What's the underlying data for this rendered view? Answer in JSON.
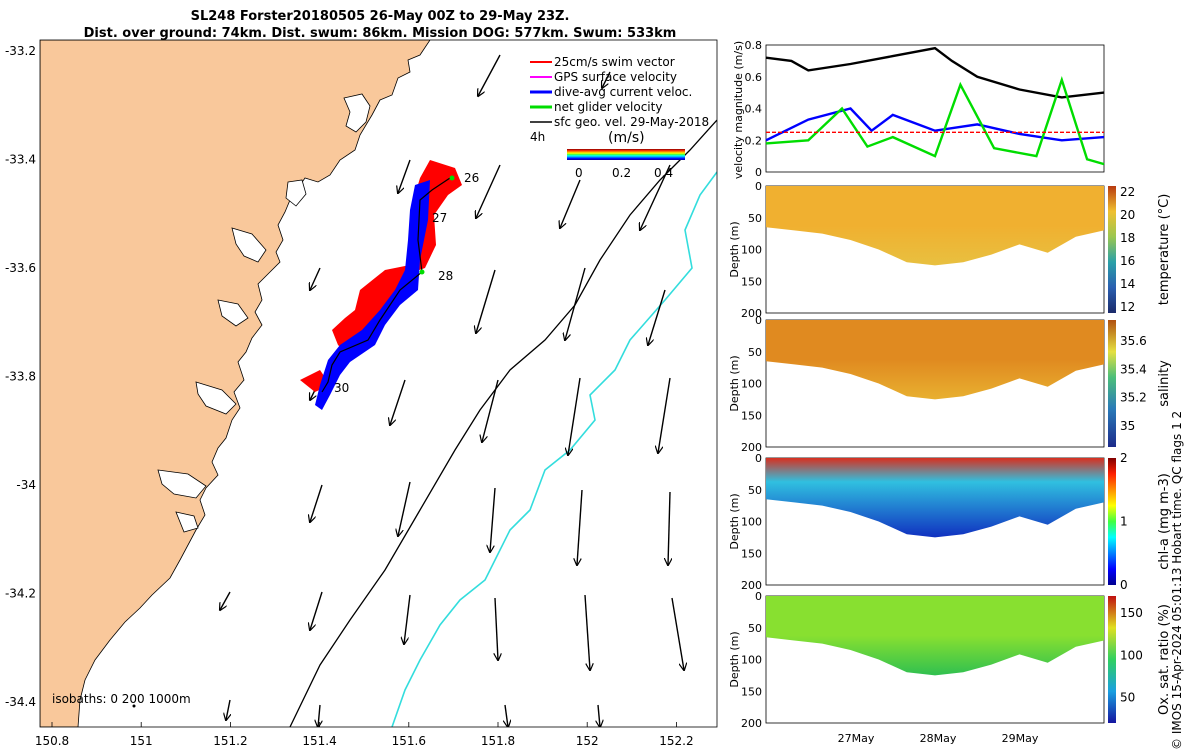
{
  "title": {
    "line1": "SL248 Forster20180505 26-May 00Z to 29-May 23Z.",
    "line2": "Dist. over ground: 74km. Dist. swum: 86km. Mission DOG: 577km. Swum: 533km"
  },
  "map": {
    "lon_ticks": [
      "150.8",
      "151",
      "151.2",
      "151.4",
      "151.6",
      "151.8",
      "152",
      "152.2"
    ],
    "lat_ticks": [
      "-33.2",
      "-33.4",
      "-33.6",
      "-33.8",
      "-34",
      "-34.2",
      "-34.4"
    ],
    "legend": [
      "25cm/s swim vector",
      "GPS surface velocity",
      "dive-avg current veloc.",
      "net glider velocity",
      "sfc geo. vel. 29-May-2018"
    ],
    "legend_colors": [
      "#ff0000",
      "#ff00ff",
      "#0000ff",
      "#00dd00",
      "#000000"
    ],
    "time_step": "4h",
    "colorbar_label": "(m/s)",
    "colorbar_ticks": [
      "0",
      "0.2",
      "0.4"
    ],
    "day_labels": [
      "26",
      "27",
      "28",
      "30"
    ],
    "isobaths": "isobaths: 0   200  1000m",
    "land_color": "#f9c89b"
  },
  "chart_data": [
    {
      "type": "line",
      "title": "",
      "ylabel": "velocity magnitude (m/s)",
      "ylim": [
        0,
        0.8
      ],
      "yticks": [
        "0",
        "0.2",
        "0.4",
        "0.6",
        "0.8"
      ],
      "series": [
        {
          "name": "sfc geo. vel.",
          "color": "#000000",
          "x": [
            0,
            0.3,
            0.5,
            1,
            1.5,
            2,
            2.2,
            2.5,
            3,
            3.5,
            4
          ],
          "values": [
            0.72,
            0.7,
            0.64,
            0.68,
            0.73,
            0.78,
            0.7,
            0.6,
            0.52,
            0.47,
            0.5
          ]
        },
        {
          "name": "dive-avg current veloc.",
          "color": "#0000ff",
          "x": [
            0,
            0.5,
            1,
            1.25,
            1.5,
            2,
            2.5,
            3,
            3.5,
            4
          ],
          "values": [
            0.2,
            0.33,
            0.4,
            0.26,
            0.36,
            0.26,
            0.3,
            0.24,
            0.2,
            0.22
          ]
        },
        {
          "name": "net glider velocity",
          "color": "#00dd00",
          "x": [
            0,
            0.5,
            0.9,
            1.2,
            1.5,
            2,
            2.3,
            2.7,
            3.2,
            3.5,
            3.8,
            4
          ],
          "values": [
            0.18,
            0.2,
            0.4,
            0.16,
            0.22,
            0.1,
            0.55,
            0.15,
            0.1,
            0.58,
            0.08,
            0.05
          ]
        },
        {
          "name": "25cm/s swim vector",
          "color": "#ff0000",
          "x": [
            0,
            4
          ],
          "values": [
            0.25,
            0.25
          ]
        }
      ]
    },
    {
      "type": "heatmap",
      "label": "temperature (°C)",
      "ylabel": "Depth (m)",
      "yticks": [
        "0",
        "50",
        "100",
        "150",
        "200"
      ],
      "colorbar_ticks": [
        "12",
        "14",
        "16",
        "18",
        "20",
        "22"
      ],
      "clim": [
        11.5,
        22.5
      ],
      "xticks": [
        "27May",
        "28May",
        "29May"
      ],
      "bottom_depth": [
        65,
        70,
        75,
        85,
        100,
        120,
        125,
        120,
        108,
        92,
        105,
        80,
        70
      ],
      "summary": "surface 20-21, cooler near bottom 17-18"
    },
    {
      "type": "heatmap",
      "label": "salinity",
      "ylabel": "Depth (m)",
      "yticks": [
        "0",
        "50",
        "100",
        "150",
        "200"
      ],
      "colorbar_ticks": [
        "35",
        "35.2",
        "35.4",
        "35.6"
      ],
      "clim": [
        34.85,
        35.75
      ],
      "xticks": [
        "27May",
        "28May",
        "29May"
      ],
      "bottom_depth": [
        65,
        70,
        75,
        85,
        100,
        120,
        125,
        120,
        108,
        92,
        105,
        80,
        70
      ],
      "summary": "35.45-35.6 throughout"
    },
    {
      "type": "heatmap",
      "label": "chl-a (mg m-3)",
      "ylabel": "Depth (m)",
      "yticks": [
        "0",
        "50",
        "100",
        "150",
        "200"
      ],
      "colorbar_ticks": [
        "0",
        "1",
        "2"
      ],
      "clim": [
        0,
        2
      ],
      "xticks": [
        "27May",
        "28May",
        "29May"
      ],
      "bottom_depth": [
        65,
        70,
        75,
        85,
        100,
        120,
        125,
        120,
        108,
        92,
        105,
        80,
        70
      ],
      "summary": "high 1.5-2 near surface, low 0.2-0.4 at depth"
    },
    {
      "type": "heatmap",
      "label": "Ox. sat. ratio (%)",
      "ylabel": "Depth (m)",
      "yticks": [
        "0",
        "50",
        "100",
        "150",
        "200"
      ],
      "colorbar_ticks": [
        "50",
        "100",
        "150"
      ],
      "clim": [
        20,
        170
      ],
      "xticks": [
        "27May",
        "28May",
        "29May"
      ],
      "bottom_depth": [
        65,
        70,
        75,
        85,
        100,
        120,
        125,
        120,
        108,
        92,
        105,
        80,
        70
      ],
      "summary": "105-120 throughout"
    }
  ],
  "credit": "© IMOS 15-Apr-2024 05:01:13 Hobart time. QC flags 1  2"
}
